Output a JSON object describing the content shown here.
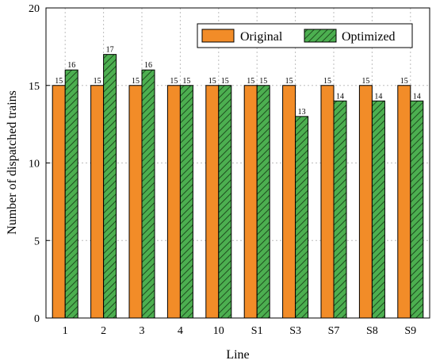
{
  "chart_data": {
    "type": "bar",
    "xlabel": "Line",
    "ylabel": "Number of dispatched trains",
    "ylim": [
      0,
      20
    ],
    "yticks": [
      0,
      5,
      10,
      15,
      20
    ],
    "grid": true,
    "legend_position": "top-right",
    "categories": [
      "1",
      "2",
      "3",
      "4",
      "10",
      "S1",
      "S3",
      "S7",
      "S8",
      "S9"
    ],
    "series": [
      {
        "name": "Original",
        "color": "#F28C28",
        "pattern": "solid",
        "values": [
          15,
          15,
          15,
          15,
          15,
          15,
          15,
          15,
          15,
          15
        ]
      },
      {
        "name": "Optimized",
        "color": "#4CAF50",
        "pattern": "hatched",
        "values": [
          16,
          17,
          16,
          15,
          15,
          15,
          13,
          14,
          14,
          14
        ]
      }
    ]
  }
}
